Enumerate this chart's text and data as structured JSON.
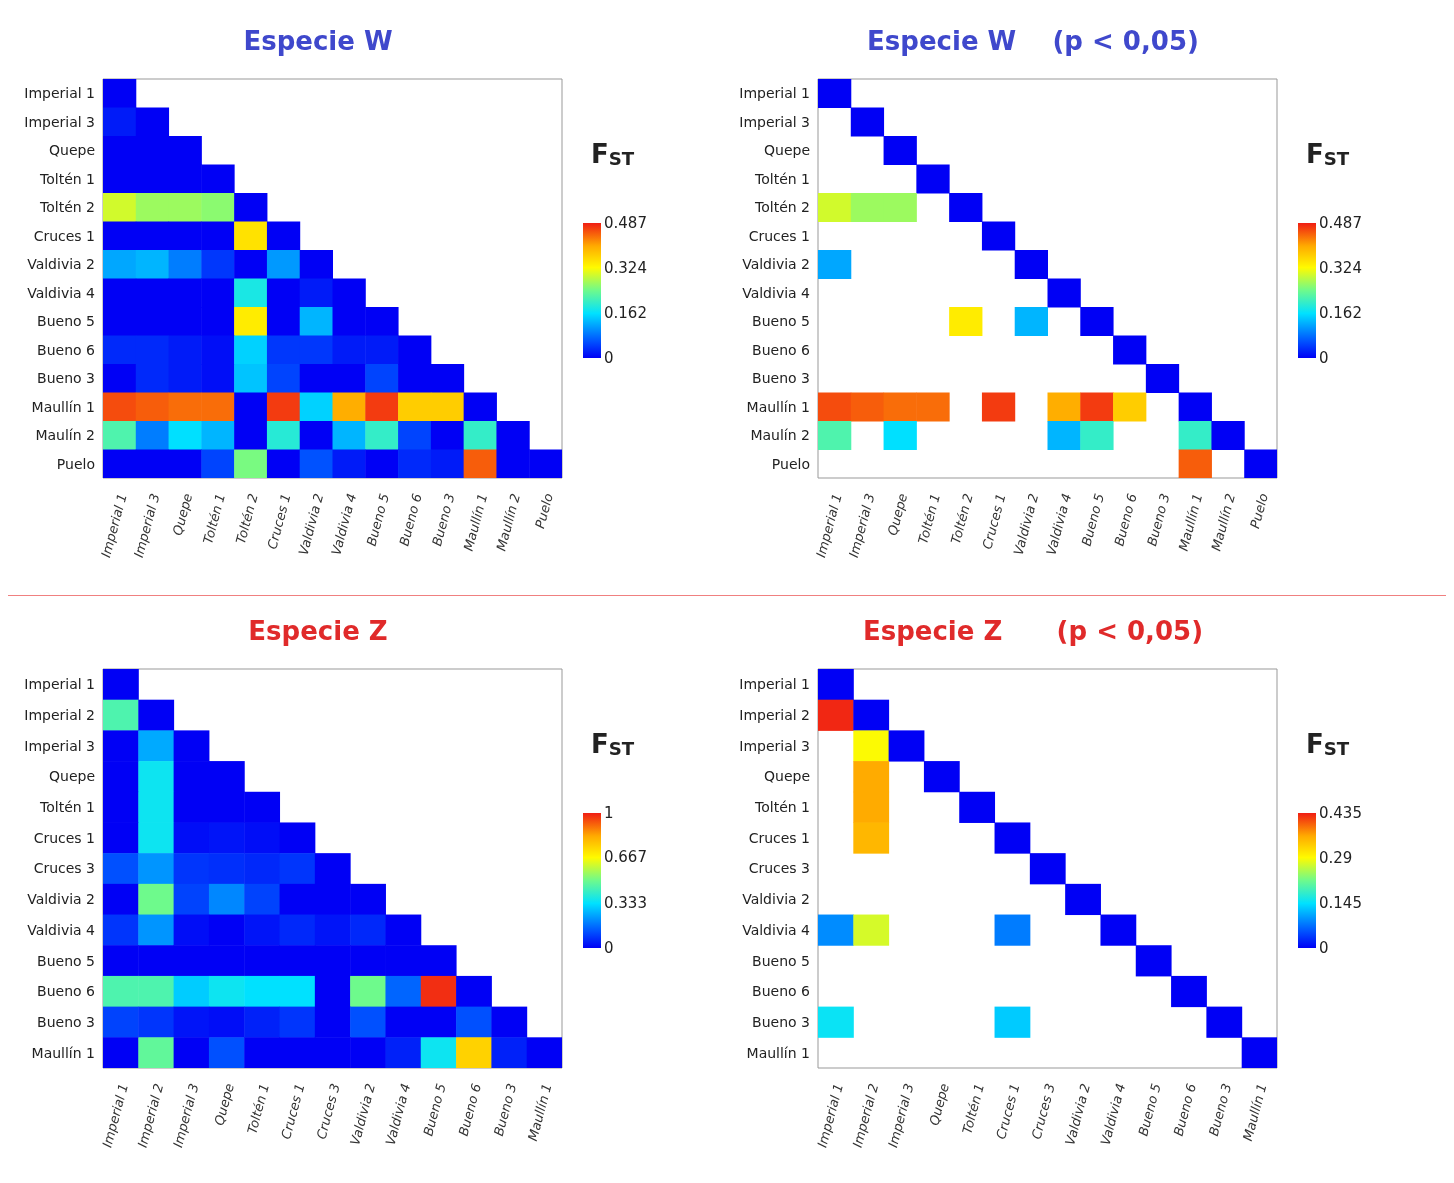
{
  "chart_data": [
    {
      "type": "heatmap",
      "title": "Especie W",
      "clabel": "F$_{ST}$",
      "clim": [
        0,
        0.487
      ],
      "cticks": [
        0,
        0.162,
        0.324,
        0.487
      ],
      "categories": [
        "Imperial 1",
        "Imperial 3",
        "Quepe",
        "Toltén 1",
        "Toltén 2",
        "Cruces 1",
        "Valdivia 2",
        "Valdivia 4",
        "Bueno 5",
        "Bueno 6",
        "Bueno 3",
        "Maullín 1",
        "Maullín 2",
        "Puelo"
      ],
      "y_categories": [
        "Imperial 1",
        "Imperial 3",
        "Quepe",
        "Toltén 1",
        "Toltén 2",
        "Cruces 1",
        "Valdivia 2",
        "Valdivia 4",
        "Bueno 5",
        "Bueno 6",
        "Bueno 3",
        "Maullín 1",
        "Maulín 2",
        "Puelo"
      ],
      "cells": [
        [
          0,
          null,
          null,
          null,
          null,
          null,
          null,
          null,
          null,
          null,
          null,
          null,
          null,
          null
        ],
        [
          0.02,
          0,
          null,
          null,
          null,
          null,
          null,
          null,
          null,
          null,
          null,
          null,
          null,
          null
        ],
        [
          0,
          0,
          0,
          null,
          null,
          null,
          null,
          null,
          null,
          null,
          null,
          null,
          null,
          null
        ],
        [
          0,
          0,
          0,
          0,
          null,
          null,
          null,
          null,
          null,
          null,
          null,
          null,
          null,
          null
        ],
        [
          0.3,
          0.27,
          0.27,
          0.26,
          0,
          null,
          null,
          null,
          null,
          null,
          null,
          null,
          null,
          null
        ],
        [
          0,
          0,
          0,
          0,
          0.35,
          0,
          null,
          null,
          null,
          null,
          null,
          null,
          null,
          null
        ],
        [
          0.12,
          0.13,
          0.09,
          0.04,
          0,
          0.11,
          0,
          null,
          null,
          null,
          null,
          null,
          null,
          null
        ],
        [
          0,
          0,
          0,
          0,
          0.18,
          0,
          0.02,
          0,
          null,
          null,
          null,
          null,
          null,
          null
        ],
        [
          0,
          0,
          0,
          0,
          0.34,
          0,
          0.13,
          0,
          0,
          null,
          null,
          null,
          null,
          null
        ],
        [
          0.03,
          0.03,
          0.02,
          0.01,
          0.15,
          0.04,
          0.04,
          0.02,
          0.02,
          0,
          null,
          null,
          null,
          null
        ],
        [
          0,
          0.03,
          0.02,
          0.01,
          0.14,
          0.05,
          0,
          0,
          0.05,
          0,
          0,
          null,
          null,
          null
        ],
        [
          0.46,
          0.45,
          0.44,
          0.44,
          0,
          0.47,
          0.15,
          0.4,
          0.47,
          0.37,
          0.37,
          0,
          null,
          null
        ],
        [
          0.22,
          0.09,
          0.16,
          0.13,
          0,
          0.19,
          0,
          0.13,
          0.2,
          0.05,
          0,
          0.2,
          0,
          null
        ],
        [
          0,
          0,
          0,
          0.05,
          0.25,
          0,
          0.06,
          0.02,
          0,
          0.03,
          0.02,
          0.45,
          0,
          0
        ]
      ]
    },
    {
      "type": "heatmap",
      "title": "Especie W    (p < 0,05)",
      "clabel": "F$_{ST}$",
      "clim": [
        0,
        0.487
      ],
      "cticks": [
        0,
        0.162,
        0.324,
        0.487
      ],
      "categories": [
        "Imperial 1",
        "Imperial 3",
        "Quepe",
        "Toltén 1",
        "Toltén 2",
        "Cruces 1",
        "Valdivia 2",
        "Valdivia 4",
        "Bueno 5",
        "Bueno 6",
        "Bueno 3",
        "Maullín 1",
        "Maullín 2",
        "Puelo"
      ],
      "y_categories": [
        "Imperial 1",
        "Imperial 3",
        "Quepe",
        "Toltén 1",
        "Toltén 2",
        "Cruces 1",
        "Valdivia 2",
        "Valdivia 4",
        "Bueno 5",
        "Bueno 6",
        "Bueno 3",
        "Maullín 1",
        "Maulín 2",
        "Puelo"
      ],
      "cells": [
        [
          0,
          null,
          null,
          null,
          null,
          null,
          null,
          null,
          null,
          null,
          null,
          null,
          null,
          null
        ],
        [
          null,
          0,
          null,
          null,
          null,
          null,
          null,
          null,
          null,
          null,
          null,
          null,
          null,
          null
        ],
        [
          null,
          null,
          0,
          null,
          null,
          null,
          null,
          null,
          null,
          null,
          null,
          null,
          null,
          null
        ],
        [
          null,
          null,
          null,
          0,
          null,
          null,
          null,
          null,
          null,
          null,
          null,
          null,
          null,
          null
        ],
        [
          0.3,
          0.27,
          0.27,
          null,
          0,
          null,
          null,
          null,
          null,
          null,
          null,
          null,
          null,
          null
        ],
        [
          null,
          null,
          null,
          null,
          null,
          0,
          null,
          null,
          null,
          null,
          null,
          null,
          null,
          null
        ],
        [
          0.12,
          null,
          null,
          null,
          null,
          null,
          0,
          null,
          null,
          null,
          null,
          null,
          null,
          null
        ],
        [
          null,
          null,
          null,
          null,
          null,
          null,
          null,
          0,
          null,
          null,
          null,
          null,
          null,
          null
        ],
        [
          null,
          null,
          null,
          null,
          0.34,
          null,
          0.13,
          null,
          0,
          null,
          null,
          null,
          null,
          null
        ],
        [
          null,
          null,
          null,
          null,
          null,
          null,
          null,
          null,
          null,
          0,
          null,
          null,
          null,
          null
        ],
        [
          null,
          null,
          null,
          null,
          null,
          null,
          null,
          null,
          null,
          null,
          0,
          null,
          null,
          null
        ],
        [
          0.46,
          0.45,
          0.44,
          0.44,
          null,
          0.47,
          null,
          0.4,
          0.47,
          0.37,
          null,
          0,
          null,
          null
        ],
        [
          0.22,
          null,
          0.16,
          null,
          null,
          null,
          null,
          0.13,
          0.2,
          null,
          null,
          0.2,
          0,
          null
        ],
        [
          null,
          null,
          null,
          null,
          null,
          null,
          null,
          null,
          null,
          null,
          null,
          0.45,
          null,
          0
        ]
      ]
    },
    {
      "type": "heatmap",
      "title": "Especie Z",
      "clabel": "F$_{ST}$",
      "clim": [
        0,
        1
      ],
      "cticks": [
        0,
        0.333,
        0.667,
        1
      ],
      "categories": [
        "Imperial 1",
        "Imperial 2",
        "Imperial 3",
        "Quepe",
        "Toltén 1",
        "Cruces 1",
        "Cruces 3",
        "Valdivia 2",
        "Valdivia 4",
        "Bueno 5",
        "Bueno 6",
        "Bueno 3",
        "Maullín 1"
      ],
      "y_categories": [
        "Imperial 1",
        "Imperial 2",
        "Imperial 3",
        "Quepe",
        "Toltén 1",
        "Cruces 1",
        "Cruces 3",
        "Valdivia 2",
        "Valdivia 4",
        "Bueno 5",
        "Bueno 6",
        "Bueno 3",
        "Maullín 1"
      ],
      "cells": [
        [
          0,
          null,
          null,
          null,
          null,
          null,
          null,
          null,
          null,
          null,
          null,
          null,
          null
        ],
        [
          0.45,
          0,
          null,
          null,
          null,
          null,
          null,
          null,
          null,
          null,
          null,
          null,
          null
        ],
        [
          0,
          0.25,
          0,
          null,
          null,
          null,
          null,
          null,
          null,
          null,
          null,
          null,
          null
        ],
        [
          0,
          0.35,
          0,
          0,
          null,
          null,
          null,
          null,
          null,
          null,
          null,
          null,
          null
        ],
        [
          0,
          0.35,
          0,
          0,
          0,
          null,
          null,
          null,
          null,
          null,
          null,
          null,
          null
        ],
        [
          0,
          0.35,
          0.02,
          0.03,
          0.02,
          0,
          null,
          null,
          null,
          null,
          null,
          null,
          null
        ],
        [
          0.12,
          0.22,
          0.08,
          0.07,
          0.06,
          0.08,
          0,
          null,
          null,
          null,
          null,
          null,
          null
        ],
        [
          0,
          0.5,
          0.1,
          0.2,
          0.1,
          0,
          0,
          0,
          null,
          null,
          null,
          null,
          null
        ],
        [
          0.08,
          0.22,
          0.02,
          0,
          0.03,
          0.06,
          0.03,
          0.06,
          0,
          null,
          null,
          null,
          null
        ],
        [
          0,
          0,
          0,
          0,
          0,
          0,
          0,
          0,
          0,
          0,
          null,
          null,
          null
        ],
        [
          0.45,
          0.45,
          0.3,
          0.35,
          0.33,
          0.33,
          0,
          0.5,
          0.15,
          0.98,
          0,
          null,
          null
        ],
        [
          0.1,
          0.08,
          0.03,
          0.02,
          0.05,
          0.08,
          0,
          0.12,
          0,
          0,
          0.12,
          0,
          null
        ],
        [
          0,
          0.48,
          0,
          0.12,
          0,
          0,
          0,
          0,
          0.05,
          0.35,
          0.75,
          0.05,
          0
        ]
      ]
    },
    {
      "type": "heatmap",
      "title": "Especie Z      (p < 0,05)",
      "clabel": "F$_{ST}$",
      "clim": [
        0,
        0.435
      ],
      "cticks": [
        0,
        0.145,
        0.29,
        0.435
      ],
      "categories": [
        "Imperial 1",
        "Imperial 2",
        "Imperial 3",
        "Quepe",
        "Toltén 1",
        "Cruces 1",
        "Cruces 3",
        "Valdivia 2",
        "Valdivia 4",
        "Bueno 5",
        "Bueno 6",
        "Bueno 3",
        "Maullín 1"
      ],
      "y_categories": [
        "Imperial 1",
        "Imperial 2",
        "Imperial 3",
        "Quepe",
        "Toltén 1",
        "Cruces 1",
        "Cruces 3",
        "Valdivia 2",
        "Valdivia 4",
        "Bueno 5",
        "Bueno 6",
        "Bueno 3",
        "Maullín 1"
      ],
      "cells": [
        [
          0,
          null,
          null,
          null,
          null,
          null,
          null,
          null,
          null,
          null,
          null,
          null,
          null
        ],
        [
          0.43,
          0,
          null,
          null,
          null,
          null,
          null,
          null,
          null,
          null,
          null,
          null,
          null
        ],
        [
          null,
          0.29,
          0,
          null,
          null,
          null,
          null,
          null,
          null,
          null,
          null,
          null,
          null
        ],
        [
          null,
          0.36,
          null,
          0,
          null,
          null,
          null,
          null,
          null,
          null,
          null,
          null,
          null
        ],
        [
          null,
          0.36,
          null,
          null,
          0,
          null,
          null,
          null,
          null,
          null,
          null,
          null,
          null
        ],
        [
          null,
          0.35,
          null,
          null,
          null,
          0,
          null,
          null,
          null,
          null,
          null,
          null,
          null
        ],
        [
          null,
          null,
          null,
          null,
          null,
          null,
          0,
          null,
          null,
          null,
          null,
          null,
          null
        ],
        [
          null,
          null,
          null,
          null,
          null,
          null,
          null,
          0,
          null,
          null,
          null,
          null,
          null
        ],
        [
          0.09,
          0.27,
          null,
          null,
          null,
          0.08,
          null,
          null,
          0,
          null,
          null,
          null,
          null
        ],
        [
          null,
          null,
          null,
          null,
          null,
          null,
          null,
          null,
          null,
          0,
          null,
          null,
          null
        ],
        [
          null,
          null,
          null,
          null,
          null,
          null,
          null,
          null,
          null,
          null,
          0,
          null,
          null
        ],
        [
          0.15,
          null,
          null,
          null,
          null,
          0.13,
          null,
          null,
          null,
          null,
          null,
          0,
          null
        ],
        [
          null,
          null,
          null,
          null,
          null,
          null,
          null,
          null,
          null,
          null,
          null,
          null,
          0
        ]
      ]
    }
  ]
}
